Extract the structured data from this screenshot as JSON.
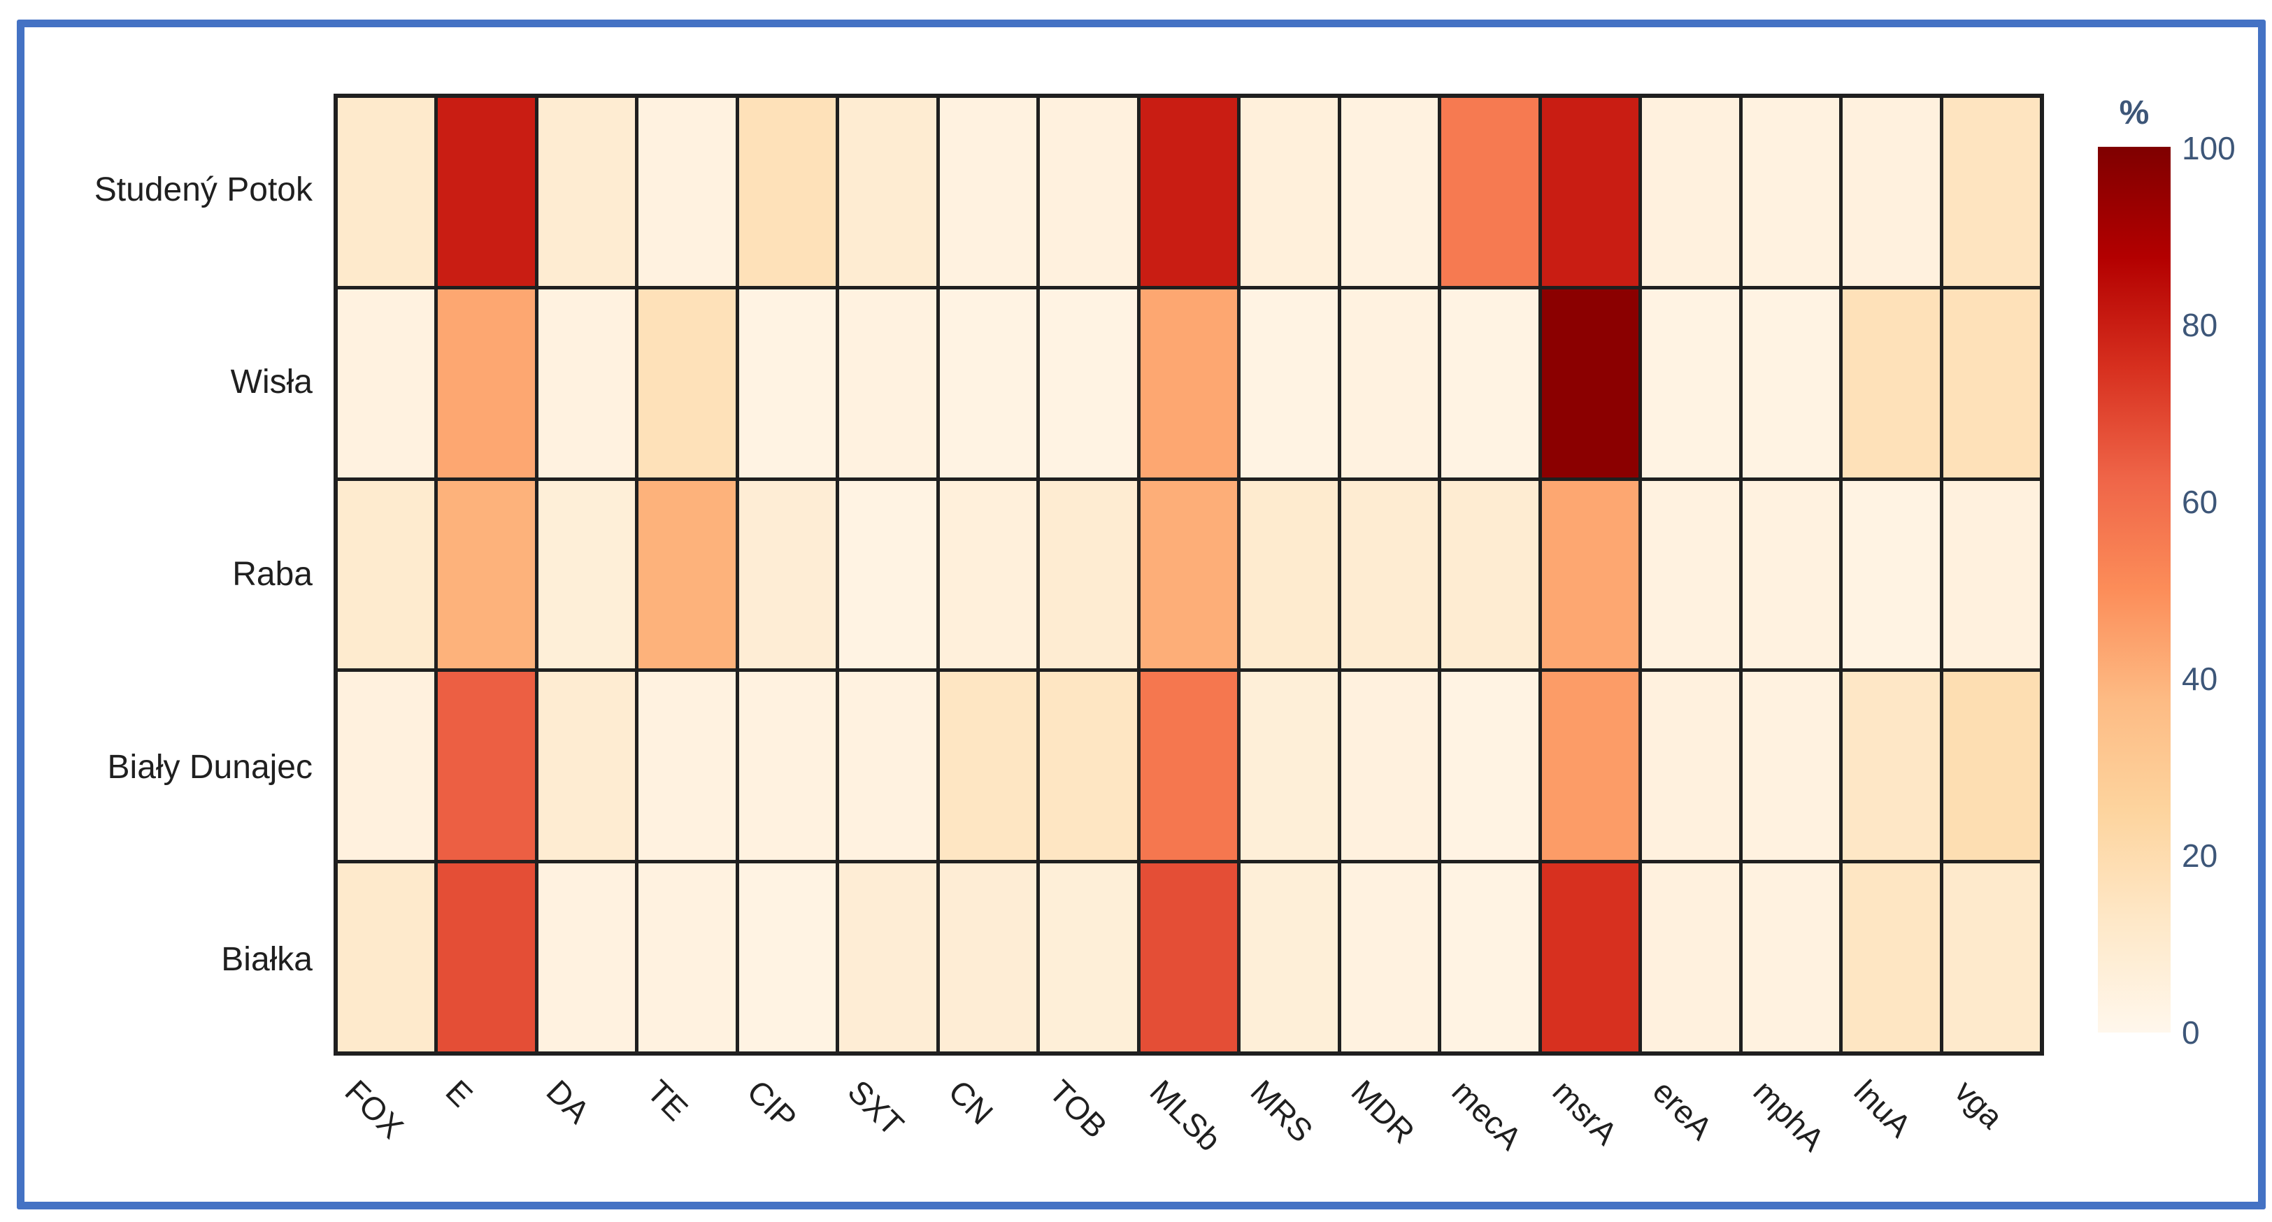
{
  "figure": {
    "frame_color": "#4472c4",
    "background": "#ffffff"
  },
  "chart_data": {
    "type": "heatmap",
    "title": "",
    "x_labels": [
      "FOX",
      "E",
      "DA",
      "TE",
      "CIP",
      "SXT",
      "CN",
      "TOB",
      "MLSb",
      "MRS",
      "MDR",
      "mecA",
      "msrA",
      "ereA",
      "mphA",
      "lnuA",
      "vga"
    ],
    "y_labels": [
      "Studený Potok",
      "Wisła",
      "Raba",
      "Biały Dunajec",
      "Białka"
    ],
    "z_percent": [
      [
        11,
        80,
        9,
        4,
        17,
        9,
        4,
        5,
        80,
        6,
        4,
        56,
        80,
        5,
        4,
        5,
        15
      ],
      [
        4,
        43,
        4,
        17,
        3,
        4,
        3,
        3,
        43,
        3,
        4,
        3,
        97,
        3,
        3,
        17,
        17
      ],
      [
        10,
        40,
        7,
        40,
        8,
        3,
        6,
        9,
        41,
        10,
        9,
        9,
        43,
        4,
        4,
        3,
        5
      ],
      [
        5,
        64,
        9,
        4,
        4,
        4,
        14,
        14,
        57,
        7,
        5,
        3,
        46,
        5,
        4,
        13,
        19
      ],
      [
        11,
        68,
        4,
        4,
        3,
        8,
        8,
        7,
        68,
        7,
        4,
        3,
        75,
        5,
        4,
        14,
        11
      ]
    ],
    "zmin": 0,
    "zmax": 100,
    "colorscale_name": "OrRd",
    "colorscale_stops": [
      [
        0,
        "#fff7ec"
      ],
      [
        0.125,
        "#fee8c8"
      ],
      [
        0.25,
        "#fdd49e"
      ],
      [
        0.375,
        "#fdbb84"
      ],
      [
        0.5,
        "#fc8d59"
      ],
      [
        0.625,
        "#ef6548"
      ],
      [
        0.75,
        "#d7301f"
      ],
      [
        0.875,
        "#b30000"
      ],
      [
        1,
        "#7f0000"
      ]
    ],
    "grid_line_color": "#1f1f1f",
    "axis_label_color": "#1f1f1f",
    "colorbar": {
      "title": "%",
      "tick_labels": [
        "100",
        "80",
        "60",
        "40",
        "20",
        "0"
      ],
      "label_color": "#3d5678",
      "position": "right"
    }
  }
}
